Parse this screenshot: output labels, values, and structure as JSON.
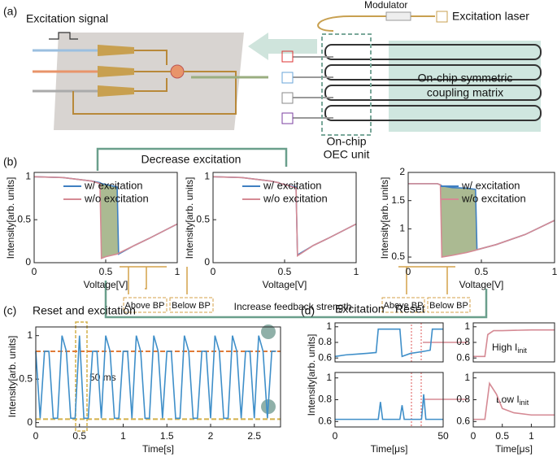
{
  "figure": {
    "panel_a": "(a)",
    "panel_b": "(b)",
    "panel_c": "(c)",
    "panel_d": "(d)",
    "excitation_signal": "Excitation signal",
    "modulator": "Modulator",
    "excitation_laser": "Excitation laser",
    "matrix": [
      "On-chip symmetric",
      "coupling matrix"
    ],
    "oec": [
      "On-chip",
      "OEC unit"
    ],
    "decrease": "Decrease excitation",
    "increase": "Increase feedback strength",
    "bp": [
      "Above BP",
      "Below BP",
      "Above BP",
      "Below BP"
    ],
    "reset_exc": "Reset and excitation",
    "ms": "50 ms",
    "excitation": "Excitation",
    "reset": "Reset",
    "high": "High I",
    "low": "Low I",
    "init": "init"
  },
  "chart_data": [
    {
      "type": "line",
      "xlim": [
        0,
        1
      ],
      "ylim": [
        0,
        1.05
      ],
      "xticks": [
        0,
        0.5,
        1
      ],
      "yticks": [
        0,
        0.5,
        1
      ],
      "xlabel": "Voltage[V]",
      "ylabel": "Intensity[arb. units]",
      "legend": "upper right",
      "fill_between": "#8fa36e",
      "x": [
        0,
        0.2,
        0.4,
        0.46,
        0.47,
        0.5,
        0.58,
        0.59,
        0.7,
        0.8,
        1
      ],
      "series": [
        {
          "name": "w/ excitation",
          "color": "#3f7fc1",
          "values": [
            1.0,
            0.99,
            0.95,
            0.93,
            0.92,
            0.91,
            0.88,
            0.1,
            0.2,
            0.28,
            0.45
          ]
        },
        {
          "name": "w/o excitation",
          "color": "#d58a94",
          "values": [
            1.0,
            0.99,
            0.95,
            0.92,
            0.05,
            0.07,
            0.1,
            0.11,
            0.2,
            0.28,
            0.45
          ]
        }
      ]
    },
    {
      "type": "line",
      "xlim": [
        0,
        1
      ],
      "ylim": [
        0,
        1.05
      ],
      "xticks": [
        0,
        0.5,
        1
      ],
      "yticks": [
        0,
        0.5,
        1
      ],
      "xlabel": "Voltage[V]",
      "ylabel": "Intensity[arb. units]",
      "legend": "upper right",
      "x": [
        0,
        0.2,
        0.4,
        0.46,
        0.47,
        0.5,
        0.58,
        0.59,
        0.7,
        0.8,
        1
      ],
      "series": [
        {
          "name": "w/ excitation",
          "color": "#3f7fc1",
          "values": [
            1.0,
            0.99,
            0.95,
            0.93,
            0.92,
            0.91,
            0.88,
            0.09,
            0.2,
            0.28,
            0.45
          ]
        },
        {
          "name": "w/o excitation",
          "color": "#d58a94",
          "values": [
            1.0,
            0.99,
            0.95,
            0.93,
            0.92,
            0.91,
            0.87,
            0.08,
            0.2,
            0.28,
            0.45
          ]
        }
      ]
    },
    {
      "type": "line",
      "xlim": [
        0,
        1
      ],
      "ylim": [
        0.4,
        2
      ],
      "xticks": [
        0,
        0.5,
        1
      ],
      "yticks": [
        0.5,
        1,
        1.5,
        2
      ],
      "xlabel": "Voltage[V]",
      "ylabel": "Intensity[arb. units]",
      "legend": "upper right",
      "fill_between": "#8fa36e",
      "x": [
        0,
        0.1,
        0.2,
        0.22,
        0.23,
        0.3,
        0.4,
        0.46,
        0.47,
        0.6,
        0.8,
        1
      ],
      "series": [
        {
          "name": "w/ excitation",
          "color": "#3f7fc1",
          "values": [
            1.8,
            1.8,
            1.8,
            1.78,
            1.76,
            1.73,
            1.72,
            1.7,
            0.63,
            0.72,
            0.9,
            1.15
          ]
        },
        {
          "name": "w/o excitation",
          "color": "#d58a94",
          "values": [
            1.8,
            1.8,
            1.8,
            1.78,
            0.5,
            0.53,
            0.58,
            0.62,
            0.63,
            0.72,
            0.9,
            1.15
          ]
        }
      ]
    },
    {
      "type": "line",
      "xlim": [
        0,
        2.8
      ],
      "ylim": [
        -0.05,
        1.1
      ],
      "xticks": [
        0,
        0.5,
        1,
        1.5,
        2,
        2.5
      ],
      "yticks": [
        0,
        0.5,
        1
      ],
      "xlabel": "Time[s]",
      "ylabel": "Intensity[arb. units]",
      "hlines": [
        {
          "value": 0.82,
          "color": "#e07b39"
        },
        {
          "value": 0.04,
          "color": "#d4b04a"
        }
      ],
      "x": [
        0,
        0.05,
        0.1,
        0.15,
        0.2,
        0.25,
        0.3,
        0.35,
        0.4,
        0.45,
        0.5,
        0.55,
        0.6,
        0.65,
        0.7,
        0.75,
        0.8,
        0.85,
        0.9,
        0.95,
        1,
        1.05,
        1.1,
        1.15,
        1.2,
        1.25,
        1.3,
        1.35,
        1.4,
        1.45,
        1.5,
        1.55,
        1.6,
        1.65,
        1.7,
        1.75,
        1.8,
        1.85,
        1.9,
        1.95,
        2,
        2.05,
        2.1,
        2.15,
        2.2,
        2.25,
        2.3,
        2.35,
        2.4,
        2.45,
        2.5,
        2.55,
        2.6,
        2.65,
        2.7,
        2.75
      ],
      "series": [
        {
          "color": "#3f8fc9",
          "values": [
            0.82,
            0.05,
            0.82,
            0.82,
            0.05,
            0.05,
            1.0,
            0.82,
            0.05,
            0.05,
            1.0,
            0.05,
            0.05,
            0.82,
            0.82,
            0.05,
            1.0,
            0.82,
            0.05,
            0.05,
            0.82,
            0.82,
            0.05,
            1.0,
            0.82,
            0.05,
            0.05,
            1.0,
            0.82,
            0.05,
            0.82,
            0.82,
            0.05,
            0.05,
            1.0,
            0.82,
            0.05,
            0.05,
            0.82,
            0.82,
            0.05,
            1.0,
            0.82,
            0.05,
            0.05,
            1.0,
            0.82,
            0.05,
            0.82,
            0.82,
            0.05,
            1.0,
            0.82,
            0.05,
            0.82,
            0.82
          ]
        }
      ]
    },
    {
      "type": "line",
      "xlim": [
        0,
        50
      ],
      "ylim": [
        0.55,
        1.05
      ],
      "yticks": [
        0.6,
        0.8,
        1
      ],
      "ylabel": "Intensity[arb. units]",
      "x": [
        0,
        5,
        10,
        15,
        19,
        20,
        25,
        30,
        31,
        35,
        40,
        44,
        45,
        50
      ],
      "series": [
        {
          "color": "#3f8fc9",
          "values": [
            0.62,
            0.64,
            0.65,
            0.66,
            0.67,
            0.97,
            0.97,
            0.97,
            0.62,
            0.66,
            0.68,
            0.7,
            0.97,
            0.97
          ]
        }
      ]
    },
    {
      "type": "line",
      "xlim": [
        0,
        50
      ],
      "ylim": [
        0.55,
        1.05
      ],
      "xticks": [
        0,
        50
      ],
      "yticks": [
        0.6,
        0.8,
        1
      ],
      "xlabel": "Time[μs]",
      "x": [
        0,
        10,
        20,
        21,
        22,
        30,
        31,
        32,
        40,
        41,
        42,
        50
      ],
      "series": [
        {
          "color": "#3f8fc9",
          "values": [
            0.62,
            0.62,
            0.62,
            0.78,
            0.62,
            0.62,
            0.75,
            0.62,
            0.62,
            0.85,
            0.62,
            0.62
          ]
        }
      ]
    },
    {
      "type": "line",
      "xlim": [
        0,
        1.4
      ],
      "ylim": [
        0.55,
        1.05
      ],
      "yticks": [
        0.6,
        0.8,
        1
      ],
      "x": [
        0,
        0.2,
        0.25,
        0.35,
        0.5,
        1,
        1.4
      ],
      "series": [
        {
          "color": "#d58a94",
          "values": [
            0.62,
            0.62,
            0.9,
            0.95,
            0.95,
            0.96,
            0.96
          ]
        }
      ]
    },
    {
      "type": "line",
      "xlim": [
        0,
        1.4
      ],
      "ylim": [
        0.55,
        1.05
      ],
      "xticks": [
        0,
        0.5,
        1
      ],
      "yticks": [
        0.6,
        0.8,
        1
      ],
      "xlabel": "Time[μs]",
      "x": [
        0,
        0.2,
        0.28,
        0.4,
        0.5,
        0.7,
        1,
        1.4
      ],
      "series": [
        {
          "color": "#d58a94",
          "values": [
            0.62,
            0.62,
            0.95,
            0.85,
            0.72,
            0.68,
            0.66,
            0.66
          ]
        }
      ]
    }
  ]
}
